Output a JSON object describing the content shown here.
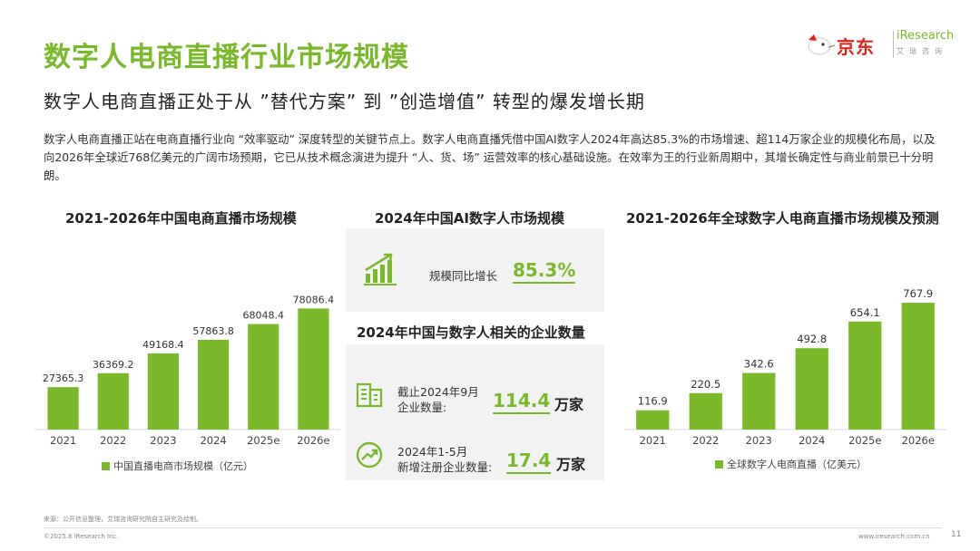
{
  "title": "数字人电商直播行业市场规模",
  "subtitle": "数字人电商直播正处于从 ”替代方案” 到 ”创造增值” 转型的爆发增长期",
  "body": "数字人电商直播正站在电商直播行业向 “效率驱动” 深度转型的关键节点上。数字人电商直播凭借中国AI数字人2024年高达85.3%的市场增速、超114万家企业的规模化布局，以及向2026年全球近768亿美元的广阔市场预期，它已从技术概念演进为提升 “人、货、场” 运营效率的核心基础设施。在效率为王的行业新周期中，其增长确定性与商业前景已十分明朗。",
  "logos": {
    "jd_text": "京东",
    "iresearch_text": "iResearch",
    "iresearch_sub": "艾瑞咨询",
    "brand_color": "#7ab929",
    "jd_color": "#e2231a"
  },
  "middle": {
    "ai_title": "2024年中国AI数字人市场规模",
    "ai_label": "规模同比增长",
    "ai_value": "85.3%",
    "ai_icon": "bar-chart-growth-icon",
    "ent_title": "2024年中国与数字人相关的企业数量",
    "ent1_label_line1": "截止2024年9月",
    "ent1_label_line2": "企业数量:",
    "ent1_value": "114.4",
    "ent1_unit": "万家",
    "ent1_icon": "building-icon",
    "ent2_label_line1": "2024年1-5月",
    "ent2_label_line2": "新增注册企业数量:",
    "ent2_value": "17.4",
    "ent2_unit": "万家",
    "ent2_icon": "trend-up-circle-icon"
  },
  "footer": {
    "source": "来源：公开信息整理，艾瑞咨询研究院自主研究及绘制。",
    "copyright": "©2025.8 iResearch Inc.",
    "website": "www.iresearch.com.cn",
    "page": "11"
  },
  "chart_data": [
    {
      "type": "bar",
      "title": "2021-2026年中国电商直播市场规模",
      "categories": [
        "2021",
        "2022",
        "2023",
        "2024",
        "2025e",
        "2026e"
      ],
      "series": [
        {
          "name": "中国直播电商市场规模（亿元）",
          "values": [
            27365.3,
            36369.2,
            49168.4,
            57863.8,
            68048.4,
            78086.4
          ]
        }
      ],
      "value_labels": [
        "27365.3",
        "36369.2",
        "49168.4",
        "57863.8",
        "68048.4",
        "78086.4"
      ],
      "ylim": [
        0,
        90000
      ],
      "grid": false,
      "legend": "bottom",
      "bar_color": "#7ab929"
    },
    {
      "type": "bar",
      "title": "2021-2026年全球数字人电商直播市场规模及预测",
      "categories": [
        "2021",
        "2022",
        "2023",
        "2024",
        "2025e",
        "2026e"
      ],
      "series": [
        {
          "name": "全球数字人电商直播（亿美元）",
          "values": [
            116.9,
            220.5,
            342.6,
            492.8,
            654.1,
            767.9
          ]
        }
      ],
      "value_labels": [
        "116.9",
        "220.5",
        "342.6",
        "492.8",
        "654.1",
        "767.9"
      ],
      "ylim": [
        0,
        900
      ],
      "grid": false,
      "legend": "bottom",
      "bar_color": "#7ab929"
    }
  ]
}
